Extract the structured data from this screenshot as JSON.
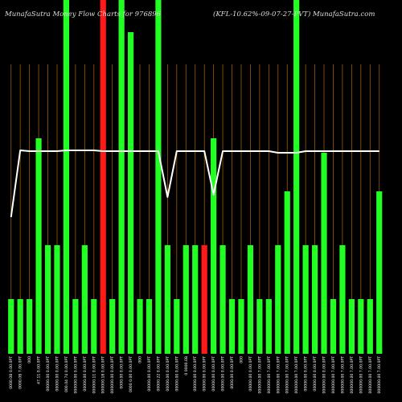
{
  "chart_data": {
    "type": "bar",
    "title_left": "MunafaSutra  Money Flow  Charts for 976896",
    "title_right": "(KFL-10.62%-09-07-27-PVT) MunafaSutra.com",
    "ylim": [
      0,
      440
    ],
    "colors": {
      "background": "#000000",
      "up": "#22ff22",
      "down": "#ff1a1a",
      "line": "#ffffff",
      "grid": "#a05a00",
      "text": "#dddddd"
    },
    "categories": [
      "0000.0B 0.00.0PT",
      "0000.0B 7.00.0PT",
      "000",
      "47.11 0.00.0PT",
      "00000.00 0.00.0PT",
      "00000.00 0.00.0PT",
      "000.04 74 0.00.0PT",
      "000000.00 0.00.0PT",
      "00000.00 0.00.0PT",
      "000000.11 0.00.0PT",
      "000000.18 0.00.0PT",
      "000000.00 0.00.0PT",
      "0000.00 0.00.0PT",
      "0000 0.00 0.00.0PT",
      "000",
      "00000.00 0.00.0PT",
      "00000.22 0.00.0PT",
      "00000.00 0.00.0PT",
      "00000.00 0.00.0PT",
      "0 0000.0B",
      "00000.00 0.00.0PT",
      "00000.00 0.00.0PT",
      "00000.00 0.00.0PT",
      "00000.00 0.00.0PT",
      "0000.00 0.00.0PT",
      "000",
      "00000.00 0.00.0PT",
      "000000.00 7.00.0PT",
      "000000.00 7.00.0PT",
      "000000.00 7.00.0PT",
      "000000.00 7.00.0PT",
      "000000.00 7.00.0PT",
      "00000.00 0.00.0PT",
      "00000.00 0.00.0PT",
      "000000.00 0.00.0PT",
      "000000.00 7.00.0PT",
      "000000.00 7.00.0PT",
      "000000.00 7.00.0PT",
      "000000.00 7.00.0PT",
      "000000.00 7.00.0PT",
      "000000.00 7.00.0PT"
    ],
    "series": [
      {
        "values": [
          68,
          68,
          68,
          268,
          135,
          135,
          440,
          68,
          135,
          68,
          440,
          68,
          440,
          400,
          68,
          68,
          440,
          135,
          68,
          135,
          135,
          135,
          268,
          135,
          68,
          68,
          135,
          68,
          68,
          135,
          202,
          440,
          135,
          135,
          250,
          68,
          135,
          68,
          68,
          68,
          202
        ],
        "colors": [
          "up",
          "up",
          "up",
          "up",
          "up",
          "up",
          "up",
          "up",
          "up",
          "up",
          "down",
          "up",
          "up",
          "up",
          "up",
          "up",
          "up",
          "up",
          "up",
          "up",
          "up",
          "down",
          "up",
          "up",
          "up",
          "up",
          "up",
          "up",
          "up",
          "up",
          "up",
          "up",
          "up",
          "up",
          "up",
          "up",
          "up",
          "up",
          "up",
          "up",
          "up"
        ]
      },
      {
        "values": [
          170,
          253,
          252,
          252,
          252,
          252,
          253,
          253,
          253,
          253,
          252,
          252,
          252,
          252,
          252,
          252,
          252,
          195,
          252,
          252,
          252,
          252,
          198,
          252,
          252,
          252,
          252,
          252,
          252,
          250,
          250,
          250,
          252,
          252,
          252,
          252,
          252,
          252,
          252,
          252,
          252
        ]
      }
    ]
  }
}
